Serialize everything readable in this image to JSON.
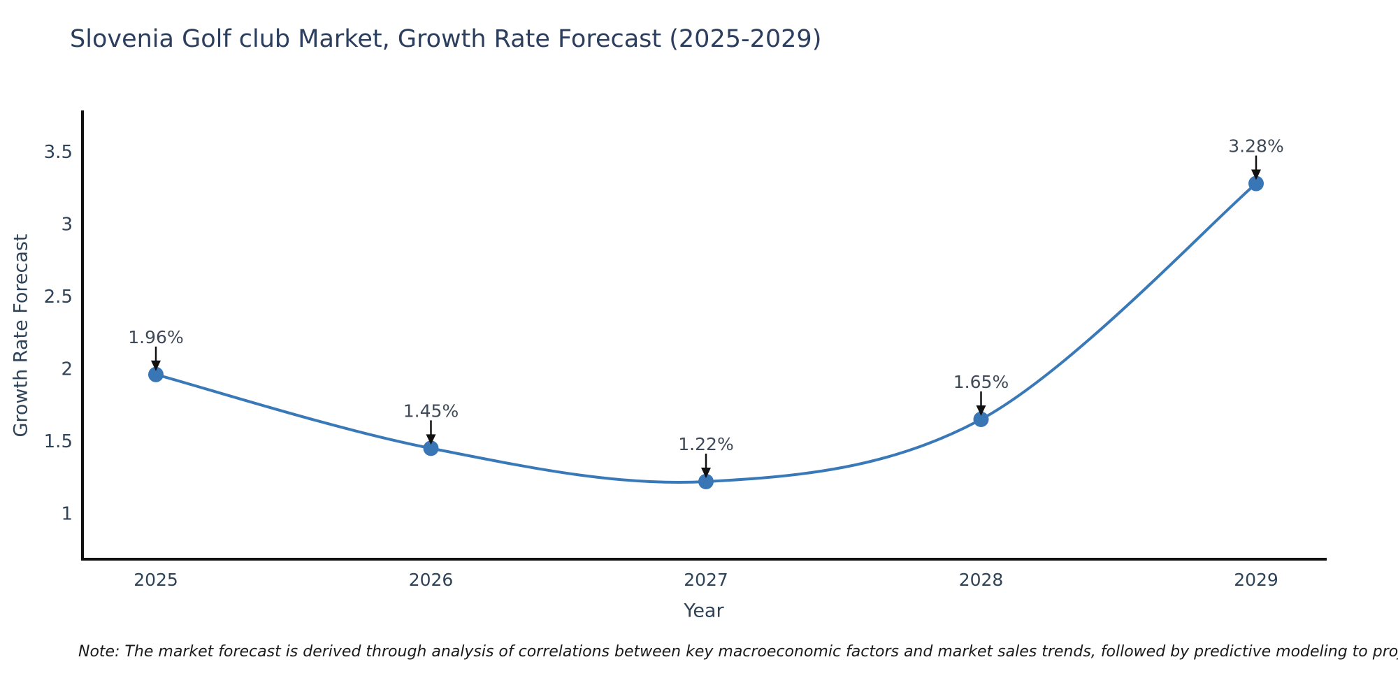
{
  "chart": {
    "title": "Slovenia Golf club Market, Growth Rate Forecast (2025-2029)",
    "xlabel": "Year",
    "ylabel": "Growth Rate Forecast",
    "note": "Note: The market forecast is derived through analysis of correlations between key macroeconomic factors and market sales trends, followed by predictive modeling to project future sales"
  },
  "chart_data": {
    "type": "line",
    "title": "Slovenia Golf club Market, Growth Rate Forecast (2025-2029)",
    "xlabel": "Year",
    "ylabel": "Growth Rate Forecast",
    "x": [
      2025,
      2026,
      2027,
      2028,
      2029
    ],
    "values": [
      1.96,
      1.45,
      1.22,
      1.65,
      3.28
    ],
    "point_labels": [
      "1.96%",
      "1.45%",
      "1.22%",
      "1.65%",
      "3.28%"
    ],
    "yticks": [
      1,
      1.5,
      2,
      2.5,
      3,
      3.5
    ],
    "ylim": [
      0.69,
      3.79
    ],
    "grid": false,
    "legend": "none",
    "line_shape": "spline",
    "annotations": "down-arrow-at-each-point",
    "colors": {
      "line": "#3a79b8",
      "marker": "#3876b5",
      "axis": "#111111",
      "tick_text": "#2f4358",
      "annotation_text": "#3f4a59",
      "arrow": "#111111",
      "title_text": "#2c3e5d"
    }
  }
}
